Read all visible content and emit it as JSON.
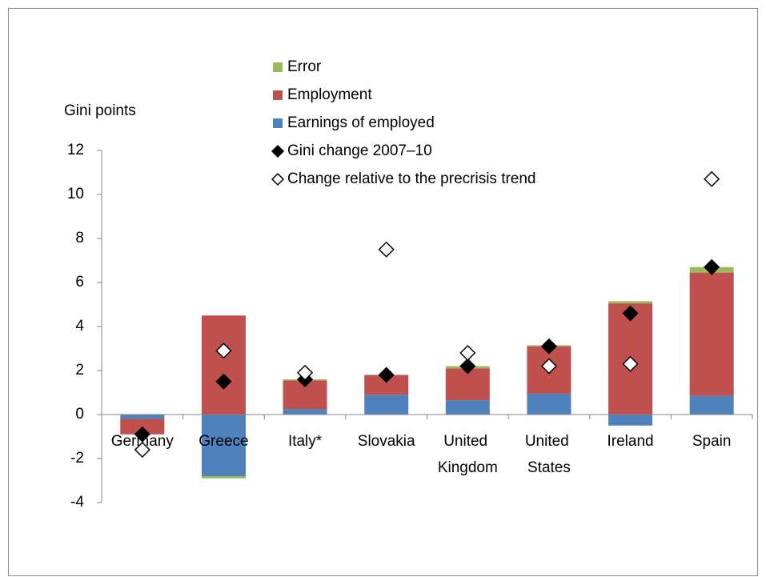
{
  "chart_data": {
    "type": "stacked_bar_scatter",
    "y_label": "Gini points",
    "categories": [
      "Germany",
      "Greece",
      "Italy*",
      "Slovakia",
      "United Kingdom",
      "United States",
      "Ireland",
      "Spain"
    ],
    "series": [
      {
        "name": "Earnings of employed",
        "type": "bar",
        "color": "#4f81bd",
        "values": [
          -0.2,
          -2.8,
          0.25,
          0.9,
          0.65,
          0.95,
          -0.5,
          0.85
        ]
      },
      {
        "name": "Employment",
        "type": "bar",
        "color": "#c0504d",
        "values": [
          -0.7,
          4.5,
          1.3,
          0.9,
          1.45,
          2.15,
          5.05,
          5.6
        ]
      },
      {
        "name": "Error",
        "type": "bar",
        "color": "#9bbb59",
        "values": [
          0,
          -0.1,
          0.05,
          0,
          0.1,
          0.05,
          0.1,
          0.25
        ]
      },
      {
        "name": "Gini change 2007–10",
        "type": "scatter",
        "color": "#000000",
        "filled": true,
        "values": [
          -0.9,
          1.5,
          1.6,
          1.8,
          2.2,
          3.1,
          4.6,
          6.7
        ]
      },
      {
        "name": "Change relative to the precrisis trend",
        "type": "scatter",
        "color": "#000000",
        "filled": false,
        "values": [
          -1.6,
          2.9,
          1.9,
          7.5,
          2.8,
          2.2,
          2.3,
          10.7
        ]
      }
    ],
    "ylim": [
      -4,
      12
    ],
    "yticks": [
      -4,
      -2,
      0,
      2,
      4,
      6,
      8,
      10,
      12
    ]
  }
}
